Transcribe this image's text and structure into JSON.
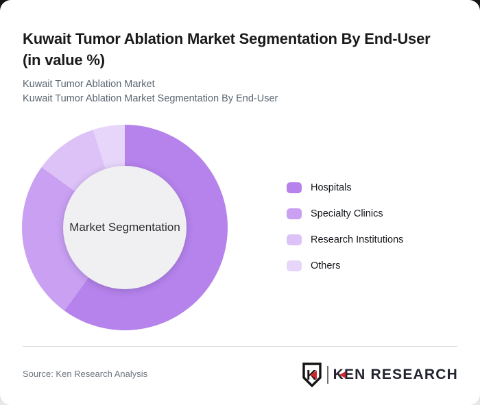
{
  "page": {
    "title": "Kuwait Tumor Ablation Market Segmentation By End-User (in value %)",
    "subtitle_line1": "Kuwait Tumor Ablation Market",
    "subtitle_line2": "Kuwait Tumor Ablation Market Segmentation By End-User",
    "source": "Source: Ken Research Analysis",
    "logo": {
      "monogram": "K",
      "wordmark_k": "K",
      "wordmark_rest": "EN RESEARCH",
      "accent_red": "#cf2730",
      "ink": "#21242e"
    }
  },
  "chart_data": {
    "type": "pie",
    "subtype": "donut",
    "title": "Kuwait Tumor Ablation Market Segmentation By End-User (in value %)",
    "unit": "value %",
    "center_label": "Market Segmentation",
    "categories": [
      "Hospitals",
      "Specialty Clinics",
      "Research Institutions",
      "Others"
    ],
    "values": [
      60,
      25,
      10,
      5
    ],
    "colors": [
      "#b583eb",
      "#c9a0f2",
      "#dcc2f6",
      "#e7d6fa"
    ],
    "hole_color": "#f0eff1",
    "start_angle_deg": 0,
    "direction": "clockwise",
    "legend_position": "right"
  }
}
